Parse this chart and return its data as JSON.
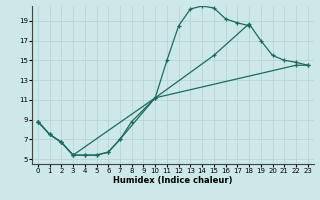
{
  "xlabel": "Humidex (Indice chaleur)",
  "bg_color": "#cce8e8",
  "grid_color": "#b8d4d4",
  "line_color": "#1e6b5e",
  "xlim": [
    -0.5,
    23.5
  ],
  "ylim": [
    4.5,
    20.5
  ],
  "yticks": [
    5,
    7,
    9,
    11,
    13,
    15,
    17,
    19
  ],
  "xticks": [
    0,
    1,
    2,
    3,
    4,
    5,
    6,
    7,
    8,
    9,
    10,
    11,
    12,
    13,
    14,
    15,
    16,
    17,
    18,
    19,
    20,
    21,
    22,
    23
  ],
  "s1_x": [
    0,
    1,
    2,
    3,
    4,
    5,
    6,
    7,
    8,
    10,
    11,
    12,
    13,
    14,
    15,
    16,
    17,
    18
  ],
  "s1_y": [
    8.8,
    7.5,
    6.7,
    5.4,
    5.4,
    5.4,
    5.7,
    7.0,
    8.8,
    11.2,
    15.0,
    18.5,
    20.2,
    20.5,
    20.3,
    19.2,
    18.8,
    18.5
  ],
  "s2_x": [
    0,
    1,
    2,
    3,
    4,
    5,
    6,
    7,
    10,
    15,
    18,
    19,
    20,
    21,
    22,
    23
  ],
  "s2_y": [
    8.8,
    7.5,
    6.7,
    5.4,
    5.4,
    5.4,
    5.7,
    7.0,
    11.2,
    15.5,
    18.7,
    17.0,
    15.5,
    15.0,
    14.8,
    14.5
  ],
  "s3_x": [
    0,
    1,
    2,
    3,
    10,
    22,
    23
  ],
  "s3_y": [
    8.8,
    7.5,
    6.7,
    5.4,
    11.2,
    14.5,
    14.5
  ]
}
